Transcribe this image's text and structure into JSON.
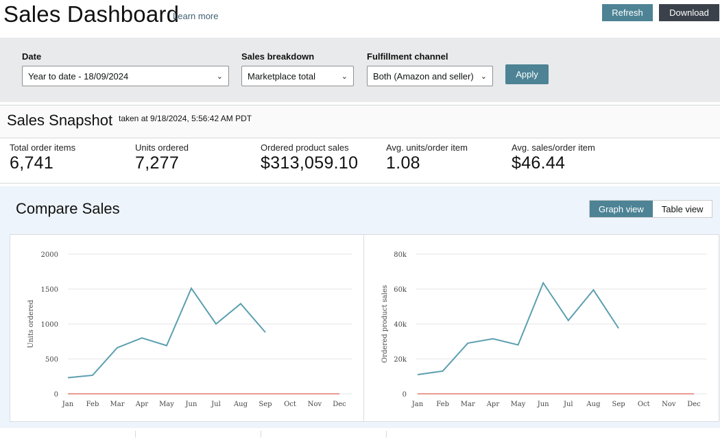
{
  "header": {
    "title": "Sales Dashboard",
    "learn_more": "Learn more",
    "refresh_label": "Refresh",
    "download_label": "Download"
  },
  "filters": {
    "date": {
      "label": "Date",
      "value": "Year to date - 18/09/2024"
    },
    "breakdown": {
      "label": "Sales breakdown",
      "value": "Marketplace total"
    },
    "channel": {
      "label": "Fulfillment channel",
      "value": "Both (Amazon and seller)"
    },
    "apply_label": "Apply"
  },
  "snapshot": {
    "title": "Sales Snapshot",
    "taken": "taken at 9/18/2024, 5:56:42 AM PDT",
    "metrics": [
      {
        "label": "Total order items",
        "value": "6,741"
      },
      {
        "label": "Units ordered",
        "value": "7,277"
      },
      {
        "label": "Ordered product sales",
        "value": "$313,059.10"
      },
      {
        "label": "Avg. units/order item",
        "value": "1.08"
      },
      {
        "label": "Avg. sales/order item",
        "value": "$46.44"
      }
    ]
  },
  "compare": {
    "title": "Compare Sales",
    "graph_view": "Graph view",
    "table_view": "Table view"
  },
  "colors": {
    "accent": "#4d8395",
    "dark_button": "#3a414a",
    "series_line": "#5b9fb0",
    "baseline": "#e07a6e"
  },
  "chart_data": [
    {
      "type": "line",
      "categories": [
        "Jan",
        "Feb",
        "Mar",
        "Apr",
        "May",
        "Jun",
        "Jul",
        "Aug",
        "Sep",
        "Oct",
        "Nov",
        "Dec"
      ],
      "series": [
        {
          "values": [
            230,
            265,
            660,
            800,
            690,
            1510,
            1000,
            1290,
            880,
            null,
            null,
            null
          ]
        },
        {
          "values": [
            0,
            0,
            0,
            0,
            0,
            0,
            0,
            0,
            0,
            0,
            0,
            0
          ]
        }
      ],
      "ylabel": "Units ordered",
      "yticks": [
        0,
        500,
        1000,
        1500,
        2000
      ],
      "ytick_labels": [
        "0",
        "500",
        "1000",
        "1500",
        "2000"
      ],
      "ylim": [
        0,
        2000
      ],
      "grid": true
    },
    {
      "type": "line",
      "categories": [
        "Jan",
        "Feb",
        "Mar",
        "Apr",
        "May",
        "Jun",
        "Jul",
        "Aug",
        "Sep",
        "Oct",
        "Nov",
        "Dec"
      ],
      "series": [
        {
          "values": [
            11000,
            13000,
            29000,
            31500,
            28000,
            63500,
            42000,
            59500,
            37500,
            null,
            null,
            null
          ]
        },
        {
          "values": [
            0,
            0,
            0,
            0,
            0,
            0,
            0,
            0,
            0,
            0,
            0,
            0
          ]
        }
      ],
      "ylabel": "Ordered product sales",
      "yticks": [
        0,
        20000,
        40000,
        60000,
        80000
      ],
      "ytick_labels": [
        "0",
        "20k",
        "40k",
        "60k",
        "80k"
      ],
      "ylim": [
        0,
        80000
      ],
      "grid": true
    }
  ]
}
